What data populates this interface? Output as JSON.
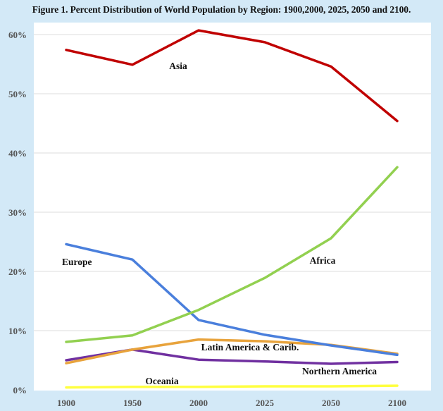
{
  "chart_data": {
    "type": "line",
    "title": "Figure 1. Percent Distribution of World Population by Region: 1900,2000, 2025, 2050 and 2100.",
    "xlabel": "",
    "ylabel": "",
    "categories": [
      "1900",
      "1950",
      "2000",
      "2025",
      "2050",
      "2100"
    ],
    "ylim": [
      0,
      60
    ],
    "yticks": [
      "0%",
      "10%",
      "20%",
      "30%",
      "40%",
      "50%",
      "60%"
    ],
    "ytick_values": [
      0,
      10,
      20,
      30,
      40,
      50,
      60
    ],
    "grid": true,
    "legend": "inline labels",
    "series": [
      {
        "name": "Asia",
        "color": "#c00000",
        "values": [
          57.4,
          54.9,
          60.7,
          58.7,
          54.6,
          45.4
        ]
      },
      {
        "name": "Africa",
        "color": "#92d050",
        "values": [
          8.1,
          9.2,
          13.5,
          18.9,
          25.6,
          37.6
        ]
      },
      {
        "name": "Europe",
        "color": "#4a7fdc",
        "values": [
          24.6,
          22.0,
          11.8,
          9.3,
          7.5,
          5.9
        ]
      },
      {
        "name": "Latin America & Carib.",
        "color": "#e8a33c",
        "values": [
          4.5,
          6.8,
          8.5,
          8.2,
          7.6,
          6.1
        ]
      },
      {
        "name": "Northern America",
        "color": "#7030a0",
        "values": [
          5.0,
          6.8,
          5.1,
          4.8,
          4.4,
          4.7
        ]
      },
      {
        "name": "Oceania",
        "color": "#ffff40",
        "values": [
          0.4,
          0.5,
          0.5,
          0.6,
          0.6,
          0.7
        ]
      }
    ]
  }
}
